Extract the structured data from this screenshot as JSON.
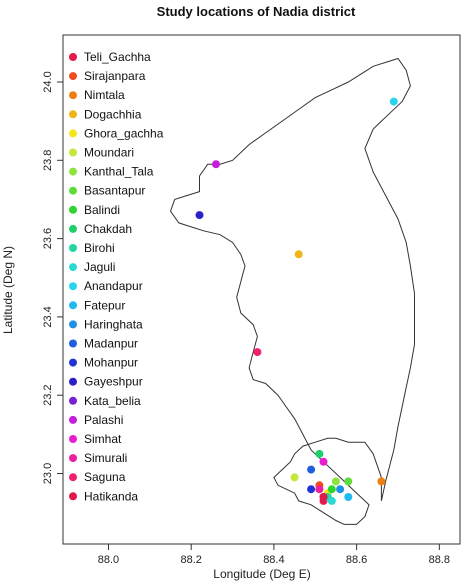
{
  "chart_data": {
    "type": "scatter",
    "title": "Study locations of Nadia district",
    "xlabel": "Longitude (Deg E)",
    "ylabel": "Latitude (Deg N)",
    "xlim": [
      87.89,
      88.85
    ],
    "ylim": [
      22.82,
      24.12
    ],
    "xticks": [
      88.0,
      88.2,
      88.4,
      88.6,
      88.8
    ],
    "yticks": [
      23.0,
      23.2,
      23.4,
      23.6,
      23.8,
      24.0
    ],
    "xtick_labels": [
      "88.0",
      "88.2",
      "88.4",
      "88.6",
      "88.8"
    ],
    "ytick_labels": [
      "23.0",
      "23.2",
      "23.4",
      "23.6",
      "23.8",
      "24.0"
    ],
    "grid": false,
    "legend_position": "top-left",
    "series": [
      {
        "name": "Teli_Gachha",
        "color": "#e6194b",
        "x": [
          88.52
        ],
        "y": [
          22.93
        ]
      },
      {
        "name": "Sirajanpara",
        "color": "#f24b1d",
        "x": [
          88.51
        ],
        "y": [
          22.97
        ]
      },
      {
        "name": "Nimtala",
        "color": "#f07f12",
        "x": [
          88.66
        ],
        "y": [
          22.98
        ]
      },
      {
        "name": "Dogachhia",
        "color": "#f0b41b",
        "x": [
          88.46
        ],
        "y": [
          23.56
        ]
      },
      {
        "name": "Ghora_gachha",
        "color": "#f5e51c",
        "x": [
          88.53
        ],
        "y": [
          22.95
        ]
      },
      {
        "name": "Moundari",
        "color": "#c4e83a",
        "x": [
          88.45
        ],
        "y": [
          22.99
        ]
      },
      {
        "name": "Kanthal_Tala",
        "color": "#8ee33c",
        "x": [
          88.55
        ],
        "y": [
          22.98
        ]
      },
      {
        "name": "Basantapur",
        "color": "#5edc3a",
        "x": [
          88.58
        ],
        "y": [
          22.98
        ]
      },
      {
        "name": "Balindi",
        "color": "#2ed52e",
        "x": [
          88.54
        ],
        "y": [
          22.96
        ]
      },
      {
        "name": "Chakdah",
        "color": "#1fd06a",
        "x": [
          88.51
        ],
        "y": [
          23.05
        ]
      },
      {
        "name": "Birohi",
        "color": "#22d6a4",
        "x": [
          88.53
        ],
        "y": [
          22.94
        ]
      },
      {
        "name": "Jaguli",
        "color": "#2ad9d4",
        "x": [
          88.54
        ],
        "y": [
          22.93
        ]
      },
      {
        "name": "Anandapur",
        "color": "#27d4f0",
        "x": [
          88.69
        ],
        "y": [
          23.95
        ]
      },
      {
        "name": "Fatepur",
        "color": "#22b9f2",
        "x": [
          88.58
        ],
        "y": [
          22.94
        ]
      },
      {
        "name": "Haringhata",
        "color": "#1e90e8",
        "x": [
          88.56
        ],
        "y": [
          22.96
        ]
      },
      {
        "name": "Madanpur",
        "color": "#1d5fe0",
        "x": [
          88.49
        ],
        "y": [
          23.01
        ]
      },
      {
        "name": "Mohanpur",
        "color": "#1f33d4",
        "x": [
          88.49
        ],
        "y": [
          22.96
        ]
      },
      {
        "name": "Gayeshpur",
        "color": "#2b1fc9",
        "x": [
          88.22
        ],
        "y": [
          23.66
        ]
      },
      {
        "name": "Kata_belia",
        "color": "#7a1fd6",
        "x": [
          88.52
        ],
        "y": [
          22.94
        ]
      },
      {
        "name": "Palashi",
        "color": "#c31fdb",
        "x": [
          88.26
        ],
        "y": [
          23.79
        ]
      },
      {
        "name": "Simhat",
        "color": "#e81fd0",
        "x": [
          88.52
        ],
        "y": [
          23.03
        ]
      },
      {
        "name": "Simurali",
        "color": "#ee1f9f",
        "x": [
          88.51
        ],
        "y": [
          22.96
        ]
      },
      {
        "name": "Saguna",
        "color": "#f01f6f",
        "x": [
          88.36
        ],
        "y": [
          23.31
        ]
      },
      {
        "name": "Hatikanda",
        "color": "#e2194a",
        "x": [
          88.52
        ],
        "y": [
          22.94
        ]
      }
    ],
    "district_boundary": [
      [
        88.57,
        22.87
      ],
      [
        88.55,
        22.88
      ],
      [
        88.52,
        22.9
      ],
      [
        88.49,
        22.92
      ],
      [
        88.46,
        22.93
      ],
      [
        88.45,
        22.95
      ],
      [
        88.43,
        22.96
      ],
      [
        88.41,
        22.97
      ],
      [
        88.4,
        22.99
      ],
      [
        88.42,
        23.01
      ],
      [
        88.44,
        23.03
      ],
      [
        88.45,
        23.05
      ],
      [
        88.47,
        23.07
      ],
      [
        88.5,
        23.08
      ],
      [
        88.53,
        23.09
      ],
      [
        88.55,
        23.09
      ],
      [
        88.58,
        23.08
      ],
      [
        88.62,
        23.08
      ],
      [
        88.64,
        23.05
      ],
      [
        88.65,
        23.02
      ],
      [
        88.66,
        22.99
      ],
      [
        88.66,
        22.95
      ],
      [
        88.66,
        22.93
      ],
      [
        88.67,
        22.98
      ],
      [
        88.68,
        23.02
      ],
      [
        88.69,
        23.06
      ],
      [
        88.7,
        23.12
      ],
      [
        88.71,
        23.17
      ],
      [
        88.72,
        23.22
      ],
      [
        88.73,
        23.27
      ],
      [
        88.74,
        23.33
      ],
      [
        88.74,
        23.4
      ],
      [
        88.74,
        23.46
      ],
      [
        88.73,
        23.53
      ],
      [
        88.72,
        23.59
      ],
      [
        88.7,
        23.65
      ],
      [
        88.67,
        23.71
      ],
      [
        88.64,
        23.77
      ],
      [
        88.62,
        23.83
      ],
      [
        88.64,
        23.88
      ],
      [
        88.68,
        23.92
      ],
      [
        88.71,
        23.95
      ],
      [
        88.73,
        23.99
      ],
      [
        88.72,
        24.03
      ],
      [
        88.7,
        24.06
      ],
      [
        88.67,
        24.05
      ],
      [
        88.64,
        24.04
      ],
      [
        88.61,
        24.02
      ],
      [
        88.58,
        24.0
      ],
      [
        88.54,
        23.98
      ],
      [
        88.5,
        23.96
      ],
      [
        88.46,
        23.93
      ],
      [
        88.42,
        23.9
      ],
      [
        88.38,
        23.87
      ],
      [
        88.34,
        23.84
      ],
      [
        88.3,
        23.8
      ],
      [
        88.27,
        23.79
      ],
      [
        88.24,
        23.79
      ],
      [
        88.22,
        23.76
      ],
      [
        88.22,
        23.72
      ],
      [
        88.19,
        23.71
      ],
      [
        88.16,
        23.7
      ],
      [
        88.15,
        23.67
      ],
      [
        88.17,
        23.64
      ],
      [
        88.2,
        23.63
      ],
      [
        88.23,
        23.62
      ],
      [
        88.27,
        23.61
      ],
      [
        88.3,
        23.59
      ],
      [
        88.32,
        23.56
      ],
      [
        88.33,
        23.53
      ],
      [
        88.32,
        23.49
      ],
      [
        88.31,
        23.45
      ],
      [
        88.32,
        23.41
      ],
      [
        88.35,
        23.38
      ],
      [
        88.36,
        23.35
      ],
      [
        88.35,
        23.31
      ],
      [
        88.34,
        23.27
      ],
      [
        88.35,
        23.24
      ],
      [
        88.38,
        23.23
      ],
      [
        88.41,
        23.2
      ],
      [
        88.43,
        23.17
      ],
      [
        88.45,
        23.14
      ],
      [
        88.47,
        23.1
      ],
      [
        88.49,
        23.06
      ],
      [
        88.52,
        23.03
      ],
      [
        88.56,
        22.99
      ],
      [
        88.6,
        22.95
      ],
      [
        88.63,
        22.92
      ],
      [
        88.62,
        22.89
      ],
      [
        88.6,
        22.87
      ]
    ]
  }
}
